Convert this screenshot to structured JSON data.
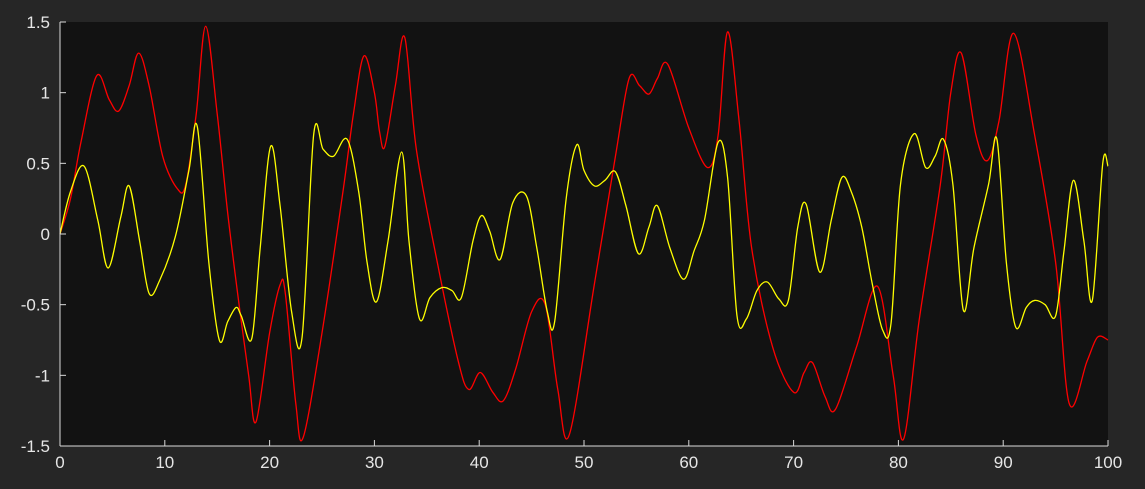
{
  "colors": {
    "figure_background": "#262626",
    "axes_background": "#121212",
    "axis_color": "#d9d9d9",
    "tick_label_color": "#e6e6e6"
  },
  "chart_data": {
    "type": "line",
    "title": "",
    "xlabel": "",
    "ylabel": "",
    "xlim": [
      0,
      100
    ],
    "ylim": [
      -1.5,
      1.5
    ],
    "xticks": [
      0,
      10,
      20,
      30,
      40,
      50,
      60,
      70,
      80,
      90,
      100
    ],
    "yticks": [
      -1.5,
      -1,
      -0.5,
      0,
      0.5,
      1,
      1.5
    ],
    "xtick_labels": [
      "0",
      "10",
      "20",
      "30",
      "40",
      "50",
      "60",
      "70",
      "80",
      "90",
      "100"
    ],
    "ytick_labels": [
      "-1.5",
      "-1",
      "-0.5",
      "0",
      "0.5",
      "1",
      "1.5"
    ],
    "grid": false,
    "legend": "none",
    "series": [
      {
        "color": "#ff0000",
        "x": [
          0,
          1,
          2,
          3.5,
          4.7,
          5.6,
          6.6,
          7.5,
          8.5,
          9.8,
          11.2,
          12,
          13,
          13.9,
          15,
          16,
          17,
          18,
          18.7,
          20,
          21,
          21.5,
          22.5,
          23.2,
          25,
          27,
          28,
          29,
          30,
          30.5,
          31,
          32,
          32.9,
          34,
          36,
          38,
          39,
          40.1,
          41.3,
          42.3,
          43.5,
          45,
          46.3,
          47.5,
          48.6,
          51,
          53,
          54.3,
          55.3,
          56.2,
          57,
          58,
          60,
          61.8,
          62.8,
          63.7,
          64.8,
          66,
          68,
          70,
          71,
          71.8,
          73,
          74,
          76,
          78,
          79.5,
          80.5,
          82,
          84,
          85,
          86,
          87.4,
          88.5,
          89.6,
          91,
          93,
          95,
          96.3,
          98,
          99,
          100
        ],
        "y": [
          0,
          0.25,
          0.65,
          1.12,
          0.95,
          0.87,
          1.05,
          1.28,
          1.05,
          0.55,
          0.32,
          0.35,
          0.85,
          1.47,
          0.85,
          0.15,
          -0.45,
          -1.0,
          -1.33,
          -0.7,
          -0.36,
          -0.42,
          -1.2,
          -1.44,
          -0.7,
          0.3,
          0.85,
          1.26,
          1.0,
          0.72,
          0.62,
          1.05,
          1.39,
          0.6,
          -0.2,
          -0.9,
          -1.1,
          -0.98,
          -1.12,
          -1.18,
          -0.95,
          -0.55,
          -0.5,
          -1.1,
          -1.42,
          -0.35,
          0.55,
          1.1,
          1.05,
          0.99,
          1.1,
          1.2,
          0.75,
          0.47,
          0.7,
          1.43,
          0.8,
          -0.1,
          -0.8,
          -1.12,
          -0.98,
          -0.91,
          -1.15,
          -1.24,
          -0.8,
          -0.37,
          -1.0,
          -1.45,
          -0.6,
          0.35,
          1.0,
          1.28,
          0.7,
          0.52,
          0.8,
          1.42,
          0.7,
          -0.2,
          -1.2,
          -0.9,
          -0.73,
          -0.75
        ]
      },
      {
        "color": "#ffff00",
        "x": [
          0,
          1,
          2.3,
          3.6,
          4.6,
          5.8,
          6.6,
          7.6,
          8.5,
          9.5,
          11,
          12.3,
          13.1,
          14.2,
          15.2,
          16,
          16.8,
          17.3,
          18.3,
          19.1,
          20.1,
          21,
          22.1,
          23.1,
          24.2,
          25.1,
          26.1,
          27.4,
          28.5,
          29.3,
          30.2,
          31.3,
          32.6,
          33.3,
          34.3,
          35.3,
          36.4,
          37.4,
          38.3,
          39.4,
          40.2,
          41,
          42,
          43.2,
          44.5,
          45.5,
          46.5,
          47.2,
          48.3,
          49.3,
          50,
          51,
          52,
          53,
          54,
          55.2,
          56.2,
          57,
          58.2,
          59.5,
          60.5,
          61.5,
          62.8,
          63.7,
          64.6,
          65.5,
          66.5,
          67.5,
          68.6,
          69.5,
          70.4,
          71.2,
          72.5,
          73.6,
          74.6,
          75.5,
          76.5,
          77.5,
          78.5,
          79.3,
          80.2,
          81.5,
          82.6,
          83.5,
          84.3,
          85.2,
          86.2,
          87.2,
          88.6,
          89.4,
          90.3,
          91.2,
          92.2,
          93,
          94,
          95,
          95.8,
          96.7,
          97.7,
          98.5,
          99.5,
          100
        ],
        "y": [
          0,
          0.3,
          0.48,
          0.1,
          -0.24,
          0.12,
          0.34,
          -0.05,
          -0.42,
          -0.33,
          -0.02,
          0.45,
          0.76,
          -0.2,
          -0.75,
          -0.62,
          -0.52,
          -0.58,
          -0.74,
          -0.1,
          0.62,
          0.2,
          -0.55,
          -0.73,
          0.7,
          0.6,
          0.55,
          0.67,
          0.3,
          -0.2,
          -0.48,
          -0.05,
          0.58,
          -0.05,
          -0.6,
          -0.45,
          -0.38,
          -0.4,
          -0.45,
          -0.05,
          0.13,
          0.02,
          -0.18,
          0.22,
          0.27,
          -0.1,
          -0.55,
          -0.62,
          0.25,
          0.63,
          0.45,
          0.34,
          0.38,
          0.44,
          0.2,
          -0.14,
          0.05,
          0.2,
          -0.1,
          -0.32,
          -0.12,
          0.1,
          0.65,
          0.4,
          -0.58,
          -0.6,
          -0.4,
          -0.34,
          -0.46,
          -0.47,
          0.05,
          0.21,
          -0.27,
          0.1,
          0.4,
          0.3,
          0.05,
          -0.35,
          -0.68,
          -0.63,
          0.35,
          0.71,
          0.47,
          0.55,
          0.67,
          0.35,
          -0.54,
          -0.1,
          0.35,
          0.67,
          -0.2,
          -0.66,
          -0.52,
          -0.47,
          -0.5,
          -0.58,
          -0.12,
          0.38,
          -0.05,
          -0.47,
          0.5,
          0.48
        ]
      }
    ]
  }
}
